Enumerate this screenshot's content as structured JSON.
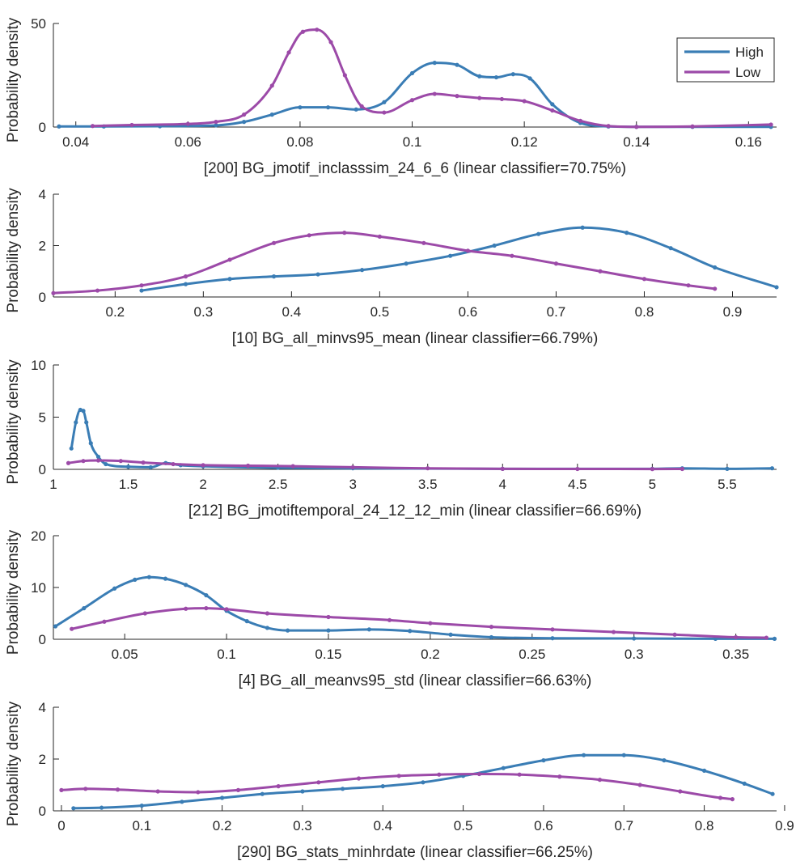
{
  "colors": {
    "high": "#3a7db5",
    "low": "#9c4aa8",
    "axis": "#262626"
  },
  "legend": {
    "placement": "top-right of first panel",
    "items": [
      "High",
      "Low"
    ]
  },
  "chart_data": [
    {
      "type": "line",
      "ylabel": "Probability density",
      "xlabel": "[200] BG_jmotif_inclasssim_24_6_6 (linear classifier=70.75%)",
      "xlim": [
        0.036,
        0.165
      ],
      "ylim": [
        0,
        50
      ],
      "xticks": [
        0.04,
        0.06,
        0.08,
        0.1,
        0.12,
        0.14,
        0.16
      ],
      "xtick_labels": [
        "0.04",
        "0.06",
        "0.08",
        "0.1",
        "0.12",
        "0.14",
        "0.16"
      ],
      "yticks": [
        0,
        50
      ],
      "ytick_labels": [
        "0",
        "50"
      ],
      "series": [
        {
          "name": "High",
          "x": [
            0.037,
            0.045,
            0.055,
            0.065,
            0.07,
            0.075,
            0.08,
            0.085,
            0.09,
            0.095,
            0.1,
            0.104,
            0.108,
            0.112,
            0.115,
            0.118,
            0.121,
            0.125,
            0.13,
            0.135,
            0.14,
            0.15,
            0.164
          ],
          "y": [
            0.3,
            0.3,
            0.4,
            0.8,
            2.5,
            6,
            9.5,
            9.5,
            8.5,
            12,
            26,
            31,
            30,
            24.5,
            24,
            25.5,
            23.5,
            11,
            2,
            0.3,
            0.1,
            0.1,
            0.1
          ]
        },
        {
          "name": "Low",
          "x": [
            0.043,
            0.05,
            0.06,
            0.065,
            0.07,
            0.075,
            0.078,
            0.0805,
            0.083,
            0.0855,
            0.088,
            0.091,
            0.095,
            0.1,
            0.104,
            0.108,
            0.112,
            0.116,
            0.12,
            0.125,
            0.13,
            0.135,
            0.14,
            0.15,
            0.164
          ],
          "y": [
            0.5,
            1.0,
            1.5,
            2.5,
            6,
            20,
            36,
            46,
            47,
            41,
            25,
            10,
            7,
            13,
            16,
            15,
            14,
            13.5,
            12.5,
            8,
            3,
            0.5,
            0.1,
            0.3,
            1.2
          ]
        }
      ]
    },
    {
      "type": "line",
      "ylabel": "Probability density",
      "xlabel": "[10] BG_all_minvs95_mean (linear classifier=66.79%)",
      "xlim": [
        0.13,
        0.95
      ],
      "ylim": [
        0,
        4
      ],
      "xticks": [
        0.2,
        0.3,
        0.4,
        0.5,
        0.6,
        0.7,
        0.8,
        0.9
      ],
      "xtick_labels": [
        "0.2",
        "0.3",
        "0.4",
        "0.5",
        "0.6",
        "0.7",
        "0.8",
        "0.9"
      ],
      "yticks": [
        0,
        2,
        4
      ],
      "ytick_labels": [
        "0",
        "2",
        "4"
      ],
      "series": [
        {
          "name": "High",
          "x": [
            0.23,
            0.28,
            0.33,
            0.38,
            0.43,
            0.48,
            0.53,
            0.58,
            0.63,
            0.68,
            0.73,
            0.78,
            0.83,
            0.88,
            0.95
          ],
          "y": [
            0.25,
            0.5,
            0.7,
            0.8,
            0.88,
            1.05,
            1.3,
            1.6,
            2.0,
            2.45,
            2.7,
            2.5,
            1.9,
            1.15,
            0.38
          ]
        },
        {
          "name": "Low",
          "x": [
            0.13,
            0.18,
            0.23,
            0.28,
            0.33,
            0.38,
            0.42,
            0.46,
            0.5,
            0.55,
            0.6,
            0.65,
            0.7,
            0.75,
            0.8,
            0.85,
            0.88
          ],
          "y": [
            0.15,
            0.25,
            0.45,
            0.8,
            1.45,
            2.1,
            2.4,
            2.5,
            2.35,
            2.1,
            1.8,
            1.6,
            1.3,
            1.0,
            0.7,
            0.45,
            0.32
          ]
        }
      ]
    },
    {
      "type": "line",
      "ylabel": "Probability density",
      "xlabel": "[212] BG_jmotiftemporal_24_12_12_min (linear classifier=66.69%)",
      "xlim": [
        1,
        5.83
      ],
      "ylim": [
        0,
        10
      ],
      "xticks": [
        1,
        1.5,
        2,
        2.5,
        3,
        3.5,
        4,
        4.5,
        5,
        5.5
      ],
      "xtick_labels": [
        "1",
        "1.5",
        "2",
        "2.5",
        "3",
        "3.5",
        "4",
        "4.5",
        "5",
        "5.5"
      ],
      "yticks": [
        0,
        5,
        10
      ],
      "ytick_labels": [
        "0",
        "5",
        "10"
      ],
      "series": [
        {
          "name": "High",
          "x": [
            1.12,
            1.15,
            1.18,
            1.2,
            1.22,
            1.25,
            1.3,
            1.35,
            1.5,
            1.65,
            1.75,
            1.85,
            2.0,
            2.5,
            3.0,
            4.0,
            5.0,
            5.2,
            5.5,
            5.8
          ],
          "y": [
            2,
            4.5,
            5.7,
            5.6,
            4.5,
            2.5,
            1.2,
            0.5,
            0.25,
            0.2,
            0.6,
            0.4,
            0.3,
            0.15,
            0.1,
            0.05,
            0.05,
            0.1,
            0.05,
            0.1
          ]
        },
        {
          "name": "Low",
          "x": [
            1.1,
            1.2,
            1.3,
            1.45,
            1.6,
            1.8,
            2.0,
            2.3,
            2.6,
            3.0,
            3.5,
            4.0,
            4.5,
            5.0,
            5.2
          ],
          "y": [
            0.6,
            0.8,
            0.85,
            0.8,
            0.65,
            0.5,
            0.4,
            0.35,
            0.3,
            0.2,
            0.1,
            0.05,
            0.04,
            0.03,
            0.04
          ]
        }
      ]
    },
    {
      "type": "line",
      "ylabel": "Probability density",
      "xlabel": "[4] BG_all_meanvs95_std (linear classifier=66.63%)",
      "xlim": [
        0.015,
        0.37
      ],
      "ylim": [
        0,
        20
      ],
      "xticks": [
        0.05,
        0.1,
        0.15,
        0.2,
        0.25,
        0.3,
        0.35
      ],
      "xtick_labels": [
        "0.05",
        "0.1",
        "0.15",
        "0.2",
        "0.25",
        "0.3",
        "0.35"
      ],
      "yticks": [
        0,
        10,
        20
      ],
      "ytick_labels": [
        "0",
        "10",
        "20"
      ],
      "series": [
        {
          "name": "High",
          "x": [
            0.016,
            0.03,
            0.045,
            0.055,
            0.062,
            0.07,
            0.08,
            0.09,
            0.1,
            0.11,
            0.12,
            0.13,
            0.15,
            0.17,
            0.19,
            0.21,
            0.23,
            0.26,
            0.3,
            0.34,
            0.369
          ],
          "y": [
            2.5,
            6,
            9.8,
            11.5,
            12,
            11.7,
            10.5,
            8.5,
            5.5,
            3.5,
            2.2,
            1.7,
            1.7,
            1.9,
            1.6,
            0.9,
            0.4,
            0.2,
            0.15,
            0.1,
            0.1
          ]
        },
        {
          "name": "Low",
          "x": [
            0.024,
            0.04,
            0.06,
            0.08,
            0.09,
            0.1,
            0.12,
            0.15,
            0.18,
            0.2,
            0.23,
            0.26,
            0.29,
            0.32,
            0.35,
            0.365
          ],
          "y": [
            2.0,
            3.4,
            5.0,
            5.9,
            6.0,
            5.8,
            5.0,
            4.3,
            3.7,
            3.1,
            2.4,
            1.9,
            1.4,
            0.9,
            0.4,
            0.3
          ]
        }
      ]
    },
    {
      "type": "line",
      "ylabel": "Probability density",
      "xlabel": "[290] BG_stats_minhrdate (linear classifier=66.25%)",
      "xlim": [
        -0.01,
        0.89
      ],
      "ylim": [
        0,
        4
      ],
      "xticks": [
        0,
        0.1,
        0.2,
        0.3,
        0.4,
        0.5,
        0.6,
        0.7,
        0.8,
        0.9
      ],
      "xtick_labels": [
        "0",
        "0.1",
        "0.2",
        "0.3",
        "0.4",
        "0.5",
        "0.6",
        "0.7",
        "0.8",
        "0.9"
      ],
      "yticks": [
        0,
        2,
        4
      ],
      "ytick_labels": [
        "0",
        "2",
        "4"
      ],
      "series": [
        {
          "name": "High",
          "x": [
            0.015,
            0.05,
            0.1,
            0.15,
            0.2,
            0.25,
            0.3,
            0.35,
            0.4,
            0.45,
            0.5,
            0.55,
            0.6,
            0.65,
            0.7,
            0.75,
            0.8,
            0.85,
            0.885
          ],
          "y": [
            0.1,
            0.12,
            0.2,
            0.35,
            0.5,
            0.65,
            0.75,
            0.85,
            0.95,
            1.1,
            1.35,
            1.65,
            1.95,
            2.15,
            2.15,
            1.95,
            1.55,
            1.05,
            0.65
          ]
        },
        {
          "name": "Low",
          "x": [
            0.0,
            0.03,
            0.07,
            0.12,
            0.17,
            0.22,
            0.27,
            0.32,
            0.37,
            0.42,
            0.47,
            0.52,
            0.57,
            0.62,
            0.67,
            0.72,
            0.77,
            0.82,
            0.835
          ],
          "y": [
            0.8,
            0.85,
            0.82,
            0.75,
            0.72,
            0.8,
            0.95,
            1.1,
            1.25,
            1.35,
            1.4,
            1.42,
            1.4,
            1.32,
            1.2,
            1.0,
            0.75,
            0.5,
            0.45
          ]
        }
      ]
    }
  ]
}
